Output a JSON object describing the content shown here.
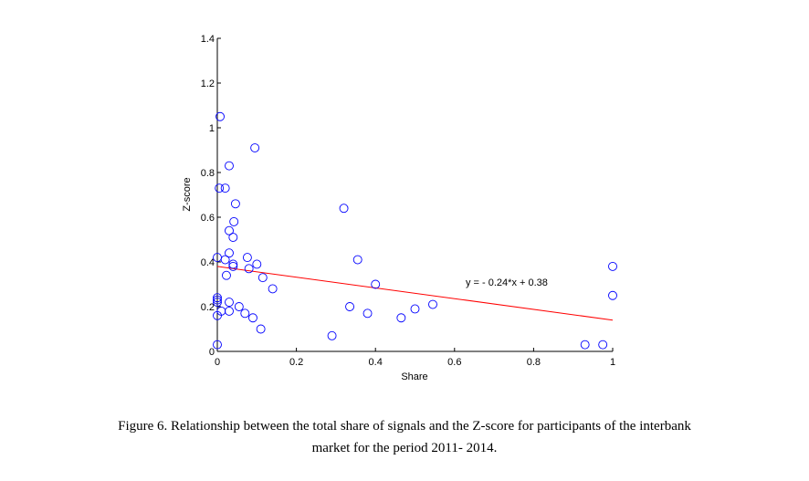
{
  "chart_data": {
    "type": "scatter",
    "xlabel": "Share",
    "ylabel": "Z-score",
    "xlim": [
      0,
      1
    ],
    "ylim": [
      0,
      1.4
    ],
    "xticks": [
      "0",
      "0.2",
      "0.4",
      "0.6",
      "0.8",
      "1"
    ],
    "yticks": [
      "0",
      "0.2",
      "0.4",
      "0.6",
      "0.8",
      "1",
      "1.2",
      "1.4"
    ],
    "grid": false,
    "marker_color": "#0000ff",
    "fit_color": "#ff0000",
    "fit": {
      "slope": -0.24,
      "intercept": 0.38,
      "label": "y = - 0.24*x + 0.38"
    },
    "points": [
      [
        0.007,
        1.05
      ],
      [
        0.095,
        0.91
      ],
      [
        0.03,
        0.83
      ],
      [
        0.005,
        0.73
      ],
      [
        0.02,
        0.73
      ],
      [
        0.046,
        0.66
      ],
      [
        0.042,
        0.58
      ],
      [
        0.03,
        0.54
      ],
      [
        0.04,
        0.51
      ],
      [
        0.0,
        0.42
      ],
      [
        0.02,
        0.41
      ],
      [
        0.03,
        0.44
      ],
      [
        0.076,
        0.42
      ],
      [
        0.04,
        0.39
      ],
      [
        0.04,
        0.38
      ],
      [
        0.1,
        0.39
      ],
      [
        0.08,
        0.37
      ],
      [
        0.023,
        0.34
      ],
      [
        0.115,
        0.33
      ],
      [
        0.14,
        0.28
      ],
      [
        0.0,
        0.24
      ],
      [
        0.0,
        0.23
      ],
      [
        0.0,
        0.22
      ],
      [
        0.03,
        0.22
      ],
      [
        0.055,
        0.2
      ],
      [
        0.03,
        0.18
      ],
      [
        0.01,
        0.18
      ],
      [
        0.0,
        0.16
      ],
      [
        0.07,
        0.17
      ],
      [
        0.09,
        0.15
      ],
      [
        0.11,
        0.1
      ],
      [
        0.0,
        0.03
      ],
      [
        0.29,
        0.07
      ],
      [
        0.32,
        0.64
      ],
      [
        0.355,
        0.41
      ],
      [
        0.4,
        0.3
      ],
      [
        0.335,
        0.2
      ],
      [
        0.38,
        0.17
      ],
      [
        0.465,
        0.15
      ],
      [
        0.5,
        0.19
      ],
      [
        0.545,
        0.21
      ],
      [
        0.93,
        0.03
      ],
      [
        0.975,
        0.03
      ],
      [
        1.0,
        0.38
      ],
      [
        1.0,
        0.25
      ]
    ]
  },
  "caption": {
    "line1": "Figure 6. Relationship between the total share of signals and the Z-score for participants of the interbank",
    "line2": "market for the period 2011- 2014."
  }
}
